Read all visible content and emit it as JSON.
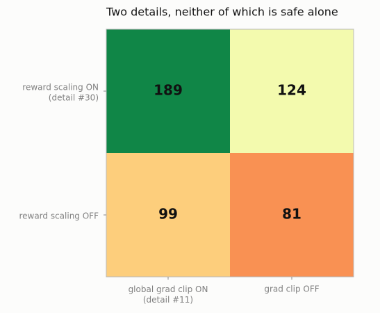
{
  "chart_data": {
    "type": "heatmap",
    "title": "Two details, neither of which is safe alone",
    "rows": [
      "reward scaling ON\n(detail #30)",
      "reward scaling OFF"
    ],
    "columns": [
      "global grad clip ON\n(detail #11)",
      "grad clip OFF"
    ],
    "values": [
      [
        189,
        124
      ],
      [
        99,
        81
      ]
    ],
    "colors": [
      [
        "#108647",
        "#f3faae"
      ],
      [
        "#fdce7c",
        "#f99153"
      ]
    ]
  }
}
